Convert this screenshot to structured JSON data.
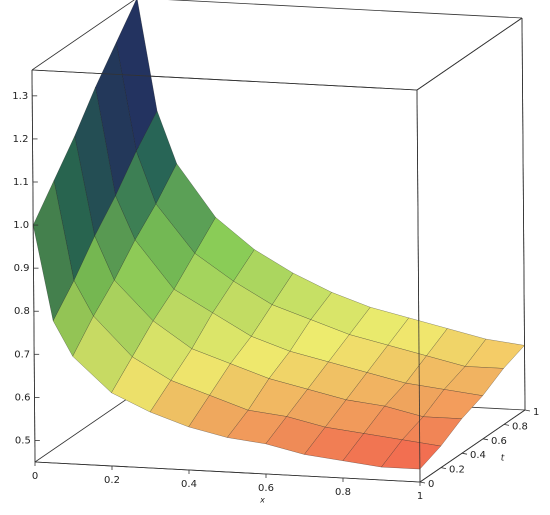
{
  "chart_data": {
    "type": "surface",
    "xlabel": "x",
    "ylabel": "t",
    "x": [
      0,
      0.05,
      0.1,
      0.2,
      0.3,
      0.4,
      0.5,
      0.6,
      0.7,
      0.8,
      0.9,
      1
    ],
    "t": [
      0,
      0.2,
      0.4,
      0.6,
      0.8,
      1
    ],
    "z": [
      [
        1.0,
        0.78,
        0.7,
        0.62,
        0.58,
        0.55,
        0.53,
        0.52,
        0.5,
        0.49,
        0.48,
        0.48
      ],
      [
        1.07,
        0.84,
        0.76,
        0.67,
        0.62,
        0.59,
        0.56,
        0.55,
        0.53,
        0.52,
        0.51,
        0.5
      ],
      [
        1.14,
        0.91,
        0.81,
        0.72,
        0.66,
        0.63,
        0.6,
        0.58,
        0.56,
        0.55,
        0.53,
        0.53
      ],
      [
        1.22,
        0.97,
        0.87,
        0.76,
        0.71,
        0.66,
        0.63,
        0.61,
        0.59,
        0.57,
        0.56,
        0.55
      ],
      [
        1.29,
        1.04,
        0.92,
        0.81,
        0.75,
        0.7,
        0.67,
        0.64,
        0.62,
        0.6,
        0.58,
        0.58
      ],
      [
        1.36,
        1.1,
        0.98,
        0.86,
        0.79,
        0.74,
        0.7,
        0.67,
        0.65,
        0.63,
        0.61,
        0.6
      ]
    ],
    "xlim": [
      0,
      1
    ],
    "ylim": [
      0,
      1
    ],
    "zlim": [
      0.45,
      1.36
    ],
    "xticks": [
      0,
      0.2,
      0.4,
      0.6,
      0.8,
      1
    ],
    "yticks": [
      0,
      0.2,
      0.4,
      0.6,
      0.8,
      1
    ],
    "zticks": [
      0.5,
      0.6,
      0.7,
      0.8,
      0.9,
      {
        "value": 1,
        "label": "1.0"
      },
      1.1,
      1.2,
      1.3
    ],
    "colorscale": [
      "#f24848",
      "#f4f070",
      "#8ad45a",
      "#2f7a62",
      "#2a3476",
      "#3aa088"
    ]
  }
}
